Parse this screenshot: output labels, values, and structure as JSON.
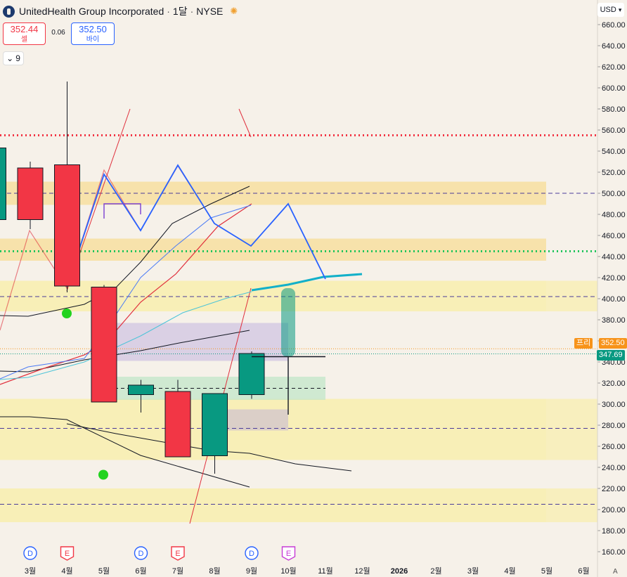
{
  "header": {
    "symbol_name": "UnitedHealth Group Incorporated",
    "interval": "1달",
    "exchange": "NYSE",
    "logo_icon": "unh-logo-icon",
    "session_icon": "sun-icon"
  },
  "trade": {
    "sell_price": "352.44",
    "sell_label": "셀",
    "spread": "0.06",
    "buy_price": "352.50",
    "buy_label": "바이"
  },
  "indicators_toggle": {
    "count": "9",
    "icon": "chevron-down-icon"
  },
  "currency": {
    "label": "USD",
    "icon": "chevron-down-icon"
  },
  "axis_corner_label": "A",
  "chart_data": {
    "type": "candlestick",
    "y_axis": {
      "min": 150,
      "max": 670,
      "step": 20
    },
    "y_ticks": [
      "160.00",
      "180.00",
      "200.00",
      "220.00",
      "240.00",
      "260.00",
      "280.00",
      "300.00",
      "320.00",
      "340.00",
      "360.00",
      "380.00",
      "400.00",
      "420.00",
      "440.00",
      "460.00",
      "480.00",
      "500.00",
      "520.00",
      "540.00",
      "560.00",
      "580.00",
      "600.00",
      "620.00",
      "640.00",
      "660.00"
    ],
    "x_ticks": [
      {
        "t": 1,
        "label": "3월"
      },
      {
        "t": 2,
        "label": "4월"
      },
      {
        "t": 3,
        "label": "5월"
      },
      {
        "t": 4,
        "label": "6월"
      },
      {
        "t": 5,
        "label": "7월"
      },
      {
        "t": 6,
        "label": "8월"
      },
      {
        "t": 7,
        "label": "9월"
      },
      {
        "t": 8,
        "label": "10월"
      },
      {
        "t": 9,
        "label": "11월"
      },
      {
        "t": 10,
        "label": "12월"
      },
      {
        "t": 11,
        "label": "2026"
      },
      {
        "t": 12,
        "label": "2월"
      },
      {
        "t": 13,
        "label": "3월"
      },
      {
        "t": 14,
        "label": "4월"
      },
      {
        "t": 15,
        "label": "5월"
      },
      {
        "t": 16,
        "label": "6월"
      }
    ],
    "candles": [
      {
        "t": 0,
        "o": 475,
        "h": 545,
        "l": 465,
        "c": 543
      },
      {
        "t": 1,
        "o": 524,
        "h": 530,
        "l": 466,
        "c": 475
      },
      {
        "t": 2,
        "o": 527,
        "h": 606,
        "l": 406,
        "c": 412
      },
      {
        "t": 3,
        "o": 411,
        "h": 413,
        "l": 302,
        "c": 302
      },
      {
        "t": 4,
        "o": 309,
        "h": 323,
        "l": 292,
        "c": 318
      },
      {
        "t": 5,
        "o": 312,
        "h": 323,
        "l": 250,
        "c": 250
      },
      {
        "t": 6,
        "o": 251,
        "h": 310,
        "l": 234,
        "c": 310
      },
      {
        "t": 7,
        "o": 309,
        "h": 350,
        "l": 305,
        "c": 348
      }
    ],
    "current_price": {
      "value": 347.69,
      "label": "347.69"
    },
    "premarket": {
      "value": 352.5,
      "label": "352.50",
      "tag": "프리"
    },
    "horizontal_levels": [
      {
        "value": 555,
        "style": "dotted",
        "color": "#f23645"
      },
      {
        "value": 445,
        "style": "dotted",
        "color": "#22c55e"
      },
      {
        "value": 500,
        "style": "dashed",
        "color": "#4a3b9a"
      },
      {
        "value": 402,
        "style": "dashed",
        "color": "#4a3b9a"
      },
      {
        "value": 277,
        "style": "dashed",
        "color": "#4a3b9a"
      },
      {
        "value": 205,
        "style": "dashed",
        "color": "#4a3b9a"
      }
    ],
    "zones": [
      {
        "from": 489,
        "to": 511,
        "color": "#f7dfa0"
      },
      {
        "from": 436,
        "to": 457,
        "color": "#f7dfa0"
      },
      {
        "from": 388,
        "to": 417,
        "color": "#f8eeb6"
      },
      {
        "from": 247,
        "to": 305,
        "color": "#f8eeb6"
      },
      {
        "from": 188,
        "to": 220,
        "color": "#f8eeb6"
      }
    ],
    "event_markers": [
      {
        "t": 1,
        "label": "D",
        "color": "#2962ff"
      },
      {
        "t": 2,
        "label": "E",
        "color": "#f23645"
      },
      {
        "t": 4,
        "label": "D",
        "color": "#2962ff"
      },
      {
        "t": 5,
        "label": "E",
        "color": "#f23645"
      },
      {
        "t": 7,
        "label": "D",
        "color": "#2962ff"
      },
      {
        "t": 8,
        "label": "E",
        "color": "#c73bd6"
      }
    ],
    "colors": {
      "up": "#089981",
      "down": "#f23645",
      "axis_text": "#131722",
      "bg": "#f6f1e9"
    }
  }
}
